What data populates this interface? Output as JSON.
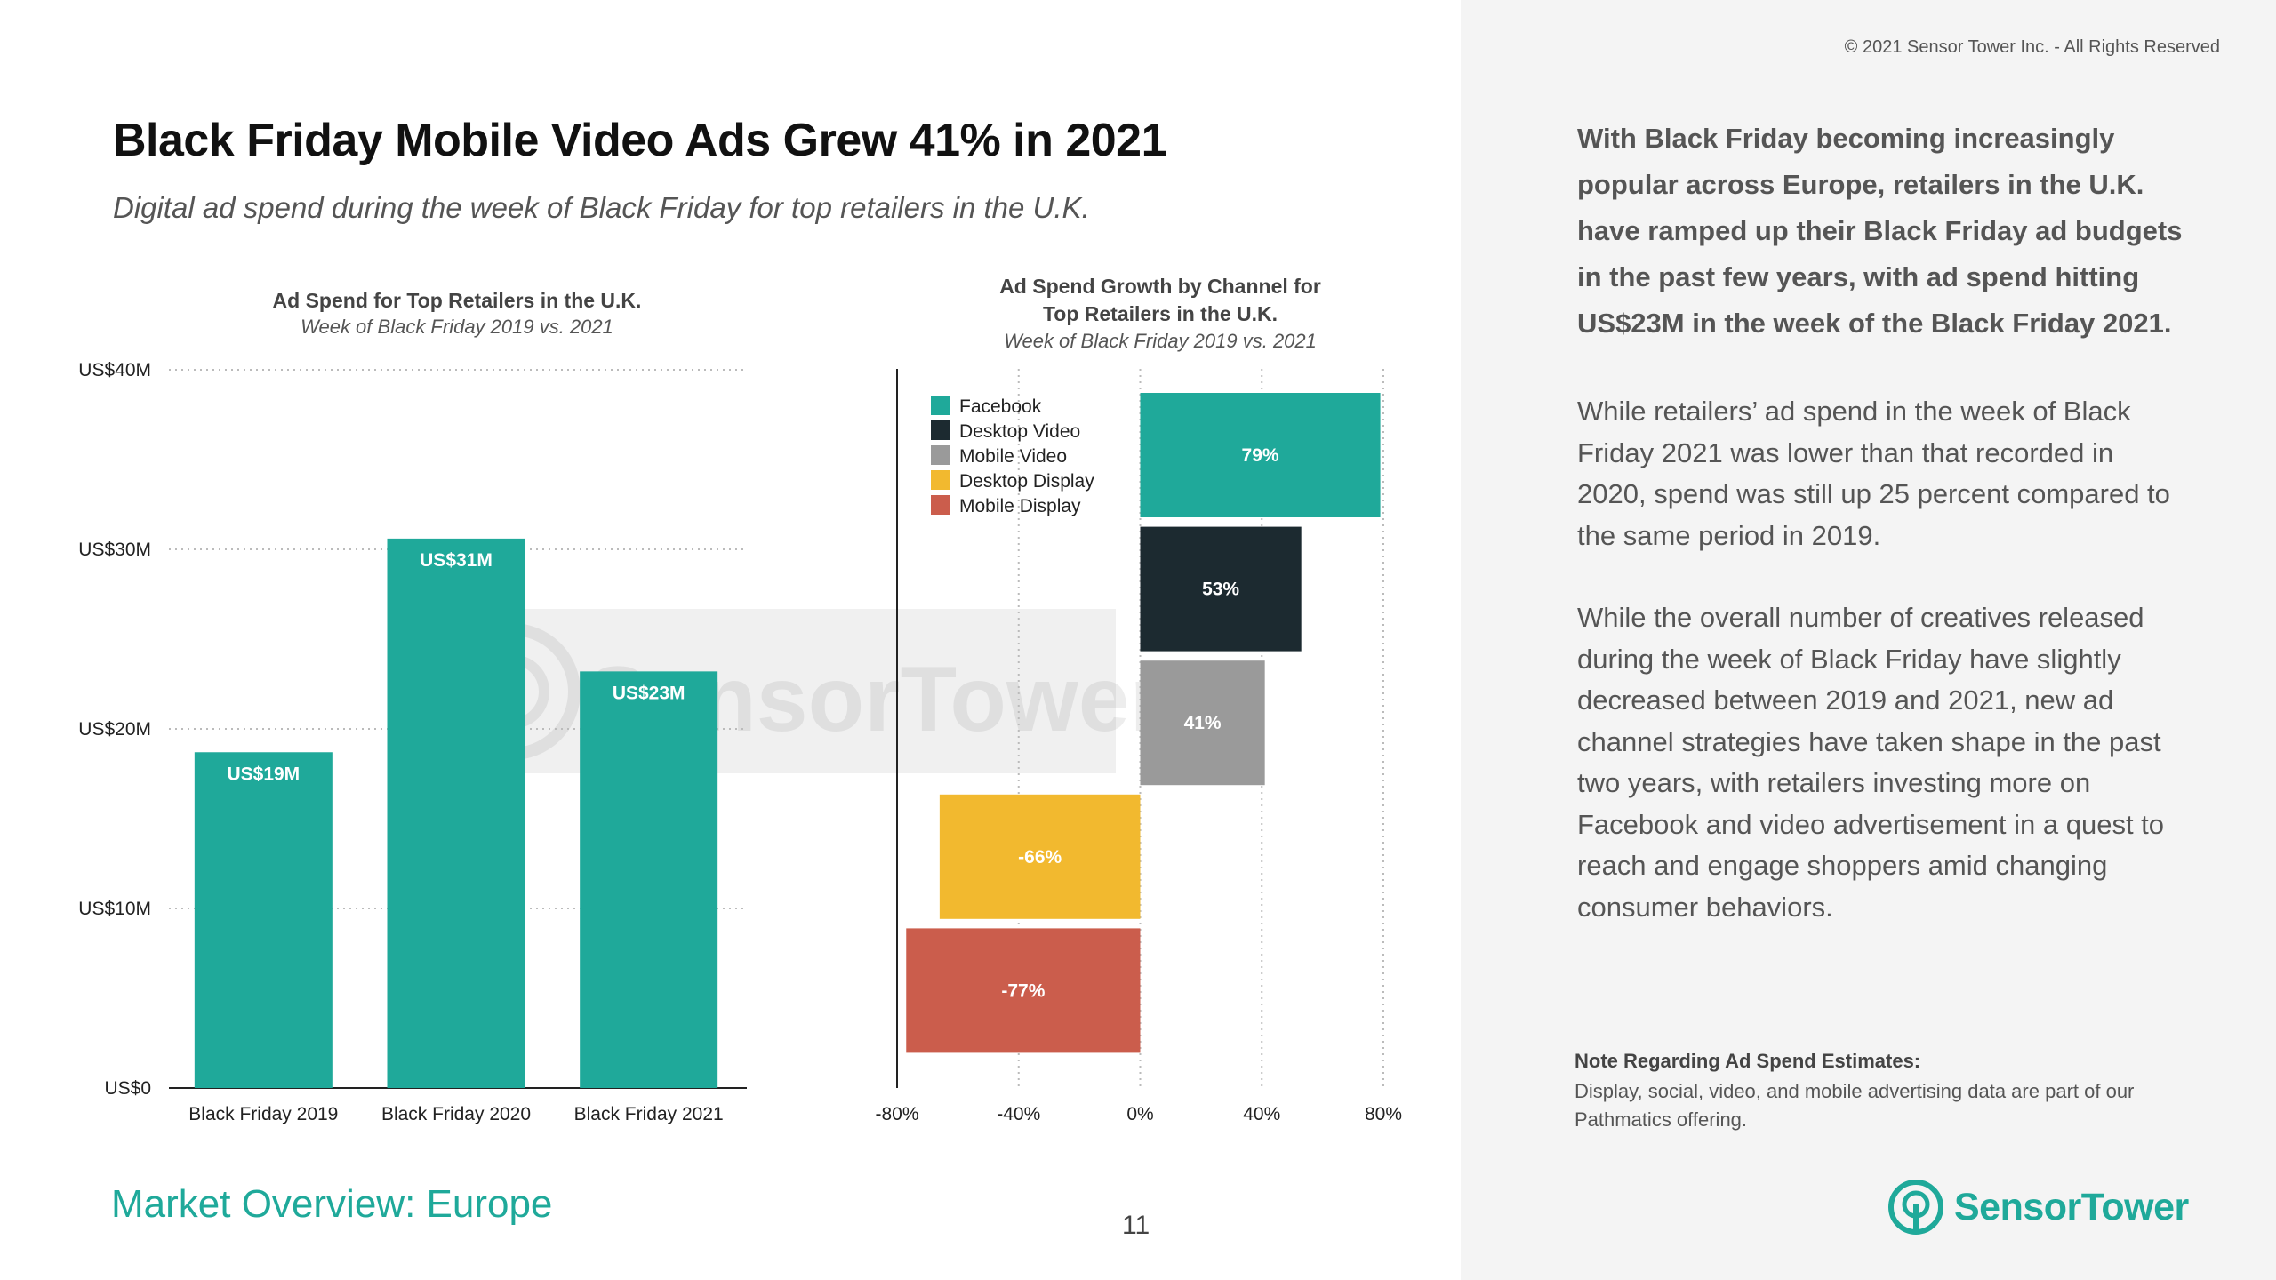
{
  "copyright": "© 2021 Sensor Tower Inc. - All Rights Reserved",
  "title": "Black Friday Mobile Video Ads Grew 41% in 2021",
  "subtitle": "Digital ad spend during the week of Black Friday for top retailers in the U.K.",
  "watermark": "SensorTower",
  "colors": {
    "teal": "#1fa99a",
    "dark": "#1c2a30",
    "gray": "#9a9a9a",
    "yellow": "#f2b92f",
    "red": "#cb5d4c"
  },
  "chart_data": [
    {
      "type": "bar",
      "title": "Ad Spend for Top Retailers in the U.K.",
      "subtitle": "Week of Black Friday 2019 vs. 2021",
      "categories": [
        "Black Friday 2019",
        "Black Friday 2020",
        "Black Friday 2021"
      ],
      "values": [
        18.7,
        30.6,
        23.2
      ],
      "data_labels": [
        "US$19M",
        "US$31M",
        "US$23M"
      ],
      "color": "#1fa99a",
      "ylim": [
        0,
        40
      ],
      "yticks": [
        0,
        10,
        20,
        30,
        40
      ],
      "ytick_labels": [
        "US$0",
        "US$10M",
        "US$20M",
        "US$30M",
        "US$40M"
      ],
      "grid": "horizontal dotted"
    },
    {
      "type": "bar",
      "orientation": "horizontal",
      "title": "Ad Spend Growth by Channel for Top Retailers in the U.K.",
      "title_lines": [
        "Ad Spend Growth by Channel for",
        "Top Retailers in the U.K."
      ],
      "subtitle": "Week of Black Friday 2019 vs. 2021",
      "categories": [
        "Facebook",
        "Desktop Video",
        "Mobile Video",
        "Desktop Display",
        "Mobile Display"
      ],
      "values": [
        79,
        53,
        41,
        -66,
        -77
      ],
      "data_labels": [
        "79%",
        "53%",
        "41%",
        "-66%",
        "-77%"
      ],
      "colors": [
        "#1fa99a",
        "#1c2a30",
        "#9a9a9a",
        "#f2b92f",
        "#cb5d4c"
      ],
      "xlim": [
        -80,
        80
      ],
      "xticks": [
        -80,
        -40,
        0,
        40,
        80
      ],
      "xtick_labels": [
        "-80%",
        "-40%",
        "0%",
        "40%",
        "80%"
      ],
      "legend": "top-left",
      "grid": "vertical dotted"
    }
  ],
  "paragraphs": {
    "p1_lines": [
      "With Black Friday becoming increasingly",
      "popular across Europe, retailers in the U.K.",
      "have ramped up their Black Friday ad budgets",
      "in the past few years, with ad spend hitting",
      "US$23M in the week of the Black Friday 2021."
    ],
    "p2_lines": [
      "While retailers’ ad spend in the week of Black",
      "Friday 2021 was lower than that recorded in",
      "2020, spend was still up 25 percent compared to",
      "the same period in 2019."
    ],
    "p3_lines": [
      "While the overall number of creatives released",
      "during the week of Black Friday have slightly",
      "decreased between 2019 and 2021, new ad",
      "channel strategies have taken shape in the past",
      "two years, with retailers investing more on",
      "Facebook and video advertisement in a quest to",
      "reach and engage shoppers amid changing",
      "consumer behaviors."
    ]
  },
  "note": {
    "title": "Note Regarding Ad Spend Estimates:",
    "body": "Display, social, video, and mobile advertising data are part of our Pathmatics offering."
  },
  "footer": {
    "section": "Market Overview: Europe",
    "page": "11",
    "brand": "SensorTower"
  }
}
